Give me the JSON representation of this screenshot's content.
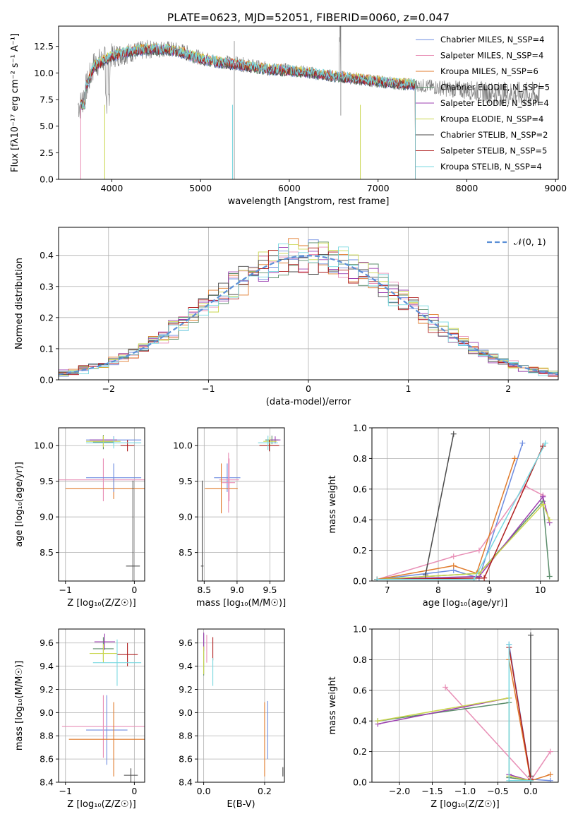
{
  "figure_title": "PLATE=0623, MJD=52051, FIBERID=0060, z=0.047",
  "colors": {
    "cm": "#6d8ce0",
    "sm": "#e88fb6",
    "km": "#e07b2c",
    "ce": "#5a8c6a",
    "se": "#9c3fb0",
    "ke": "#c9d64c",
    "cs": "#4a4a4a",
    "ss": "#b02020",
    "ks": "#78d8e0",
    "grey": "#808080",
    "grid": "#b0b0b0",
    "normal": "#5b8fd6"
  },
  "chart_data": [
    {
      "id": "spectrum",
      "type": "line",
      "title": "PLATE=0623, MJD=52051, FIBERID=0060, z=0.047",
      "xlabel": "wavelength [Angstrom, rest frame]",
      "ylabel": "Flux [fλ10⁻¹⁷ erg cm⁻² s⁻¹ A⁻¹]",
      "xlim": [
        3400,
        9030
      ],
      "ylim": [
        0,
        14.4
      ],
      "xticks": [
        "4000",
        "5000",
        "6000",
        "7000",
        "8000",
        "9000"
      ],
      "yticks": [
        "0.0",
        "2.5",
        "5.0",
        "7.5",
        "10.0",
        "12.5"
      ],
      "grid": false,
      "legend": "top-right",
      "data_envelope": {
        "x": [
          3650,
          3800,
          4000,
          4200,
          4400,
          4600,
          4800,
          5000,
          5200,
          5400,
          5600,
          5800,
          6000,
          6200,
          6400,
          6600,
          6800,
          7000,
          7200,
          7400,
          7600,
          7800,
          8000,
          8200,
          8400,
          8600,
          8800
        ],
        "y": [
          7.0,
          10.8,
          11.6,
          11.9,
          12.2,
          12.3,
          12.0,
          11.4,
          11.1,
          10.9,
          10.6,
          10.4,
          10.3,
          10.1,
          9.8,
          9.6,
          9.4,
          9.2,
          9.0,
          8.9,
          8.7,
          8.5,
          8.4,
          8.2,
          8.1,
          8.0,
          7.9
        ],
        "noise": [
          1.5,
          1.4,
          1.2,
          1.0,
          0.9,
          0.8,
          0.8,
          0.7,
          0.7,
          0.7,
          0.7,
          0.6,
          0.6,
          0.6,
          0.6,
          0.6,
          0.6,
          0.6,
          0.6,
          0.6,
          0.7,
          0.8,
          0.9,
          1.0,
          1.1,
          1.2,
          1.3
        ]
      },
      "model_envelope": {
        "x": [
          3650,
          3800,
          4000,
          4200,
          4400,
          4600,
          4800,
          5000,
          5200,
          5400,
          5600,
          5800,
          6000,
          6200,
          6400,
          6600,
          6800,
          7000,
          7200,
          7400
        ],
        "y": [
          7.5,
          10.6,
          11.6,
          12.0,
          12.2,
          12.2,
          11.9,
          11.3,
          11.0,
          10.8,
          10.5,
          10.3,
          10.2,
          10.0,
          9.8,
          9.6,
          9.4,
          9.2,
          9.0,
          8.9
        ]
      },
      "legend_entries": [
        "Chabrier MILES, N_SSP=4",
        "Salpeter MILES, N_SSP=4",
        "Kroupa MILES, N_SSP=6",
        "Chabrier ELODIE, N_SSP=5",
        "Salpeter ELODIE, N_SSP=4",
        "Kroupa ELODIE, N_SSP=4",
        "Chabrier STELIB, N_SSP=2",
        "Salpeter STELIB, N_SSP=5",
        "Kroupa STELIB, N_SSP=4"
      ]
    },
    {
      "id": "residuals",
      "type": "histogram",
      "xlabel": "(data-model)/error",
      "ylabel": "Normed distribution",
      "xlim": [
        -2.5,
        2.5
      ],
      "ylim": [
        0,
        0.49
      ],
      "xticks": [
        "−2",
        "−1",
        "0",
        "1",
        "2"
      ],
      "yticks": [
        "0.0",
        "0.1",
        "0.2",
        "0.3",
        "0.4"
      ],
      "grid": true,
      "legend": "top-right",
      "legend_entry": "𝒩(0, 1)",
      "bin_width": 0.1
    },
    {
      "id": "age-vs-Z",
      "type": "errorbar",
      "xlabel": "Z [log₁₀(Z/Z☉)]",
      "ylabel": "age  [log₁₀(age/yr)]",
      "xlim": [
        -1.1,
        0.15
      ],
      "ylim": [
        8.1,
        10.25
      ],
      "xticks": [
        "−1",
        "0"
      ],
      "yticks": [
        "8.5",
        "9.0",
        "9.5",
        "10.0"
      ],
      "grid": true,
      "points": [
        {
          "m": "cm",
          "x": -0.3,
          "xe": 0.4,
          "y": 10.08,
          "ye": 0.05
        },
        {
          "m": "sm",
          "x": -0.45,
          "xe": 0.65,
          "y": 9.52,
          "ye": 0.3
        },
        {
          "m": "km",
          "x": -0.3,
          "xe": 0.7,
          "y": 9.4,
          "ye": 0.15
        },
        {
          "m": "ce",
          "x": -0.45,
          "xe": 0.15,
          "y": 10.05,
          "ye": 0.1
        },
        {
          "m": "se",
          "x": -0.45,
          "xe": 0.2,
          "y": 10.08,
          "ye": 0.05
        },
        {
          "m": "ke",
          "x": -0.45,
          "xe": 0.25,
          "y": 10.06,
          "ye": 0.08
        },
        {
          "m": "cs",
          "x": -0.02,
          "xe": 0.1,
          "y": 8.31,
          "ye": 1.2
        },
        {
          "m": "ss",
          "x": -0.1,
          "xe": 0.1,
          "y": 10.0,
          "ye": 0.08
        },
        {
          "m": "ks",
          "x": -0.3,
          "xe": 0.4,
          "y": 10.04,
          "ye": 0.08
        },
        {
          "m": "cm",
          "x": -0.3,
          "xe": 0.4,
          "y": 9.55,
          "ye": 0.2
        }
      ]
    },
    {
      "id": "age-vs-mass",
      "type": "errorbar",
      "xlabel": "mass [log₁₀(M/M☉)]",
      "xlim": [
        8.4,
        9.72
      ],
      "ylim": [
        8.1,
        10.25
      ],
      "xticks": [
        "8.5",
        "9.0",
        "9.5"
      ],
      "yticks": [
        "8.5",
        "9.0",
        "9.5",
        "10.0"
      ],
      "grid": true,
      "points": [
        {
          "m": "cm",
          "x": 8.85,
          "xe": 0.2,
          "y": 9.55,
          "ye": 0.2
        },
        {
          "m": "sm",
          "x": 8.88,
          "xe": 0.15,
          "y": 9.52,
          "ye": 0.3
        },
        {
          "m": "km",
          "x": 8.76,
          "xe": 0.25,
          "y": 9.4,
          "ye": 0.35
        },
        {
          "m": "ce",
          "x": 9.53,
          "xe": 0.1,
          "y": 10.08,
          "ye": 0.06
        },
        {
          "m": "se",
          "x": 9.58,
          "xe": 0.08,
          "y": 10.08,
          "ye": 0.05
        },
        {
          "m": "ke",
          "x": 9.5,
          "xe": 0.1,
          "y": 10.06,
          "ye": 0.06
        },
        {
          "m": "cs",
          "x": 8.47,
          "xe": 0.02,
          "y": 8.31,
          "ye": 1.2
        },
        {
          "m": "ss",
          "x": 9.49,
          "xe": 0.15,
          "y": 10.0,
          "ye": 0.08
        },
        {
          "m": "ks",
          "x": 9.47,
          "xe": 0.15,
          "y": 10.04,
          "ye": 0.1
        },
        {
          "m": "sm",
          "x": 8.87,
          "xe": 0.1,
          "y": 9.48,
          "ye": 0.42
        }
      ]
    },
    {
      "id": "weight-vs-age",
      "type": "line",
      "xlabel": "age  [log₁₀(age/yr)]",
      "ylabel": "mass weight",
      "xlim": [
        6.7,
        10.35
      ],
      "ylim": [
        0,
        1.0
      ],
      "xticks": [
        "7",
        "8",
        "9",
        "10"
      ],
      "yticks": [
        "0.0",
        "0.2",
        "0.4",
        "0.6",
        "0.8",
        "1.0"
      ],
      "grid": true,
      "series": [
        {
          "m": "cm",
          "x": [
            6.8,
            8.3,
            8.8,
            9.65
          ],
          "y": [
            0.01,
            0.07,
            0.02,
            0.9
          ]
        },
        {
          "m": "sm",
          "x": [
            6.8,
            8.3,
            8.8,
            9.7,
            10.05
          ],
          "y": [
            0.01,
            0.16,
            0.2,
            0.62,
            0.56
          ]
        },
        {
          "m": "km",
          "x": [
            6.8,
            8.3,
            8.75,
            9.5
          ],
          "y": [
            0.01,
            0.1,
            0.05,
            0.8
          ]
        },
        {
          "m": "ce",
          "x": [
            6.8,
            8.8,
            10.05,
            10.18
          ],
          "y": [
            0.01,
            0.05,
            0.52,
            0.03
          ]
        },
        {
          "m": "se",
          "x": [
            6.8,
            8.8,
            10.05,
            10.18
          ],
          "y": [
            0.01,
            0.03,
            0.55,
            0.38
          ]
        },
        {
          "m": "ke",
          "x": [
            6.8,
            8.8,
            10.05,
            10.18
          ],
          "y": [
            0.01,
            0.05,
            0.5,
            0.4
          ]
        },
        {
          "m": "cs",
          "x": [
            7.75,
            8.3
          ],
          "y": [
            0.04,
            0.96
          ]
        },
        {
          "m": "ss",
          "x": [
            6.8,
            8.9,
            10.05
          ],
          "y": [
            0.01,
            0.02,
            0.88
          ]
        },
        {
          "m": "ks",
          "x": [
            6.8,
            8.7,
            10.1
          ],
          "y": [
            0.01,
            0.01,
            0.9
          ]
        }
      ]
    },
    {
      "id": "mass-vs-Z",
      "type": "errorbar",
      "xlabel": "Z [log₁₀(Z/Z☉)]",
      "ylabel": "mass [log₁₀(M/M☉)]",
      "xlim": [
        -1.1,
        0.15
      ],
      "ylim": [
        8.4,
        9.72
      ],
      "xticks": [
        "−1",
        "0"
      ],
      "yticks": [
        "8.4",
        "8.6",
        "8.8",
        "9.0",
        "9.2",
        "9.4",
        "9.6"
      ],
      "grid": true,
      "points": [
        {
          "m": "cm",
          "x": -0.4,
          "xe": 0.3,
          "y": 8.85,
          "ye": 0.3
        },
        {
          "m": "sm",
          "x": -0.45,
          "xe": 0.6,
          "y": 8.88,
          "ye": 0.27
        },
        {
          "m": "km",
          "x": -0.3,
          "xe": 0.65,
          "y": 8.77,
          "ye": 0.32
        },
        {
          "m": "ce",
          "x": -0.45,
          "xe": 0.15,
          "y": 9.55,
          "ye": 0.1
        },
        {
          "m": "se",
          "x": -0.43,
          "xe": 0.15,
          "y": 9.61,
          "ye": 0.07
        },
        {
          "m": "ke",
          "x": -0.45,
          "xe": 0.2,
          "y": 9.51,
          "ye": 0.08
        },
        {
          "m": "cs",
          "x": -0.05,
          "xe": 0.1,
          "y": 8.46,
          "ye": 0.06
        },
        {
          "m": "ss",
          "x": -0.1,
          "xe": 0.15,
          "y": 9.5,
          "ye": 0.1
        },
        {
          "m": "ks",
          "x": -0.25,
          "xe": 0.35,
          "y": 9.43,
          "ye": 0.2
        }
      ]
    },
    {
      "id": "mass-vs-EBV",
      "type": "errorbar",
      "xlabel": "E(B-V)",
      "xlim": [
        -0.02,
        0.265
      ],
      "ylim": [
        8.4,
        9.72
      ],
      "xticks": [
        "0.0",
        "0.2"
      ],
      "yticks": [
        "8.4",
        "8.6",
        "8.8",
        "9.0",
        "9.2",
        "9.4",
        "9.6"
      ],
      "grid": true,
      "points": [
        {
          "m": "cm",
          "x": 0.21,
          "xe": 0.0,
          "y": 8.85,
          "ye": 0.25
        },
        {
          "m": "sm",
          "x": 0.01,
          "xe": 0.0,
          "y": 9.55,
          "ye": 0.12
        },
        {
          "m": "km",
          "x": 0.2,
          "xe": 0.0,
          "y": 8.77,
          "ye": 0.32
        },
        {
          "m": "ce",
          "x": 0.0,
          "xe": 0.0,
          "y": 9.5,
          "ye": 0.18
        },
        {
          "m": "se",
          "x": 0.0,
          "xe": 0.0,
          "y": 9.61,
          "ye": 0.08
        },
        {
          "m": "ke",
          "x": 0.0,
          "xe": 0.0,
          "y": 9.45,
          "ye": 0.12
        },
        {
          "m": "cs",
          "x": 0.26,
          "xe": 0.0,
          "y": 8.49,
          "ye": 0.04
        },
        {
          "m": "ss",
          "x": 0.03,
          "xe": 0.0,
          "y": 9.55,
          "ye": 0.1
        },
        {
          "m": "ks",
          "x": 0.03,
          "xe": 0.0,
          "y": 9.35,
          "ye": 0.12
        }
      ]
    },
    {
      "id": "weight-vs-Z",
      "type": "line",
      "xlabel": "Z [log₁₀(Z/Z☉)]",
      "ylabel": "mass weight",
      "xlim": [
        -2.42,
        0.42
      ],
      "ylim": [
        0,
        1.0
      ],
      "xticks": [
        "−2.0",
        "−1.5",
        "−1.0",
        "−0.5",
        "0.0"
      ],
      "yticks": [
        "0.0",
        "0.2",
        "0.4",
        "0.6",
        "0.8",
        "1.0"
      ],
      "grid": true,
      "series": [
        {
          "m": "cm",
          "x": [
            -0.33,
            0.0,
            0.3
          ],
          "y": [
            0.9,
            0.02,
            0.01
          ]
        },
        {
          "m": "sm",
          "x": [
            -1.3,
            0.0,
            0.3
          ],
          "y": [
            0.62,
            0.01,
            0.2
          ]
        },
        {
          "m": "km",
          "x": [
            -0.33,
            0.0,
            0.3
          ],
          "y": [
            0.8,
            0.01,
            0.05
          ]
        },
        {
          "m": "ce",
          "x": [
            -2.33,
            -0.33,
            -0.33,
            0.0
          ],
          "y": [
            0.4,
            0.52,
            0.03,
            0.01
          ]
        },
        {
          "m": "se",
          "x": [
            -2.33,
            -0.33,
            -0.33,
            0.0
          ],
          "y": [
            0.38,
            0.55,
            0.05,
            0.01
          ]
        },
        {
          "m": "ke",
          "x": [
            -2.33,
            -0.33,
            -0.33,
            0.0
          ],
          "y": [
            0.4,
            0.55,
            0.04,
            0.01
          ]
        },
        {
          "m": "cs",
          "x": [
            0.0,
            0.0
          ],
          "y": [
            0.04,
            0.96
          ]
        },
        {
          "m": "ss",
          "x": [
            -0.33,
            0.0
          ],
          "y": [
            0.88,
            0.02
          ]
        },
        {
          "m": "ks",
          "x": [
            -0.33,
            -0.33,
            0.0
          ],
          "y": [
            0.9,
            0.01,
            0.01
          ]
        }
      ]
    }
  ]
}
